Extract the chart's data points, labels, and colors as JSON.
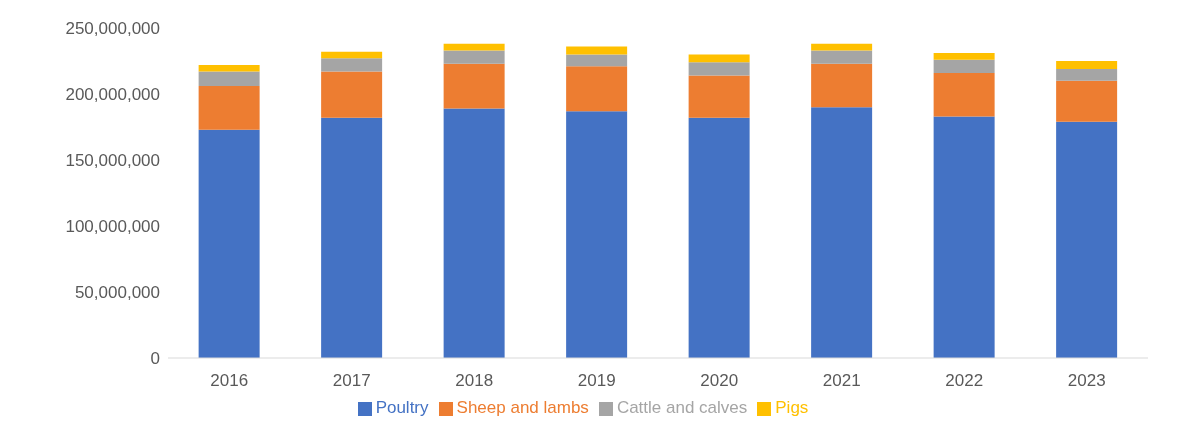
{
  "chart_data": {
    "type": "bar",
    "stacked": true,
    "categories": [
      "2016",
      "2017",
      "2018",
      "2019",
      "2020",
      "2021",
      "2022",
      "2023"
    ],
    "series": [
      {
        "name": "Poultry",
        "color": "#4472c4",
        "values": [
          173000000,
          182000000,
          189000000,
          187000000,
          182000000,
          190000000,
          183000000,
          179000000
        ]
      },
      {
        "name": "Sheep and lambs",
        "color": "#ed7d31",
        "values": [
          33000000,
          35000000,
          34000000,
          34000000,
          32000000,
          33000000,
          33000000,
          31000000
        ]
      },
      {
        "name": "Cattle and calves",
        "color": "#a5a5a5",
        "values": [
          11000000,
          10000000,
          10000000,
          9000000,
          10000000,
          10000000,
          10000000,
          9000000
        ]
      },
      {
        "name": "Pigs",
        "color": "#ffc000",
        "values": [
          5000000,
          5000000,
          5000000,
          6000000,
          6000000,
          5000000,
          5000000,
          6000000
        ]
      }
    ],
    "ylim": [
      0,
      250000000
    ],
    "yticks": [
      {
        "value": 0,
        "label": "0"
      },
      {
        "value": 50000000,
        "label": "50,000,000"
      },
      {
        "value": 100000000,
        "label": "100,000,000"
      },
      {
        "value": 150000000,
        "label": "150,000,000"
      },
      {
        "value": 200000000,
        "label": "200,000,000"
      },
      {
        "value": 250000000,
        "label": "250,000,000"
      }
    ],
    "grid": false,
    "legend": "bottom"
  }
}
